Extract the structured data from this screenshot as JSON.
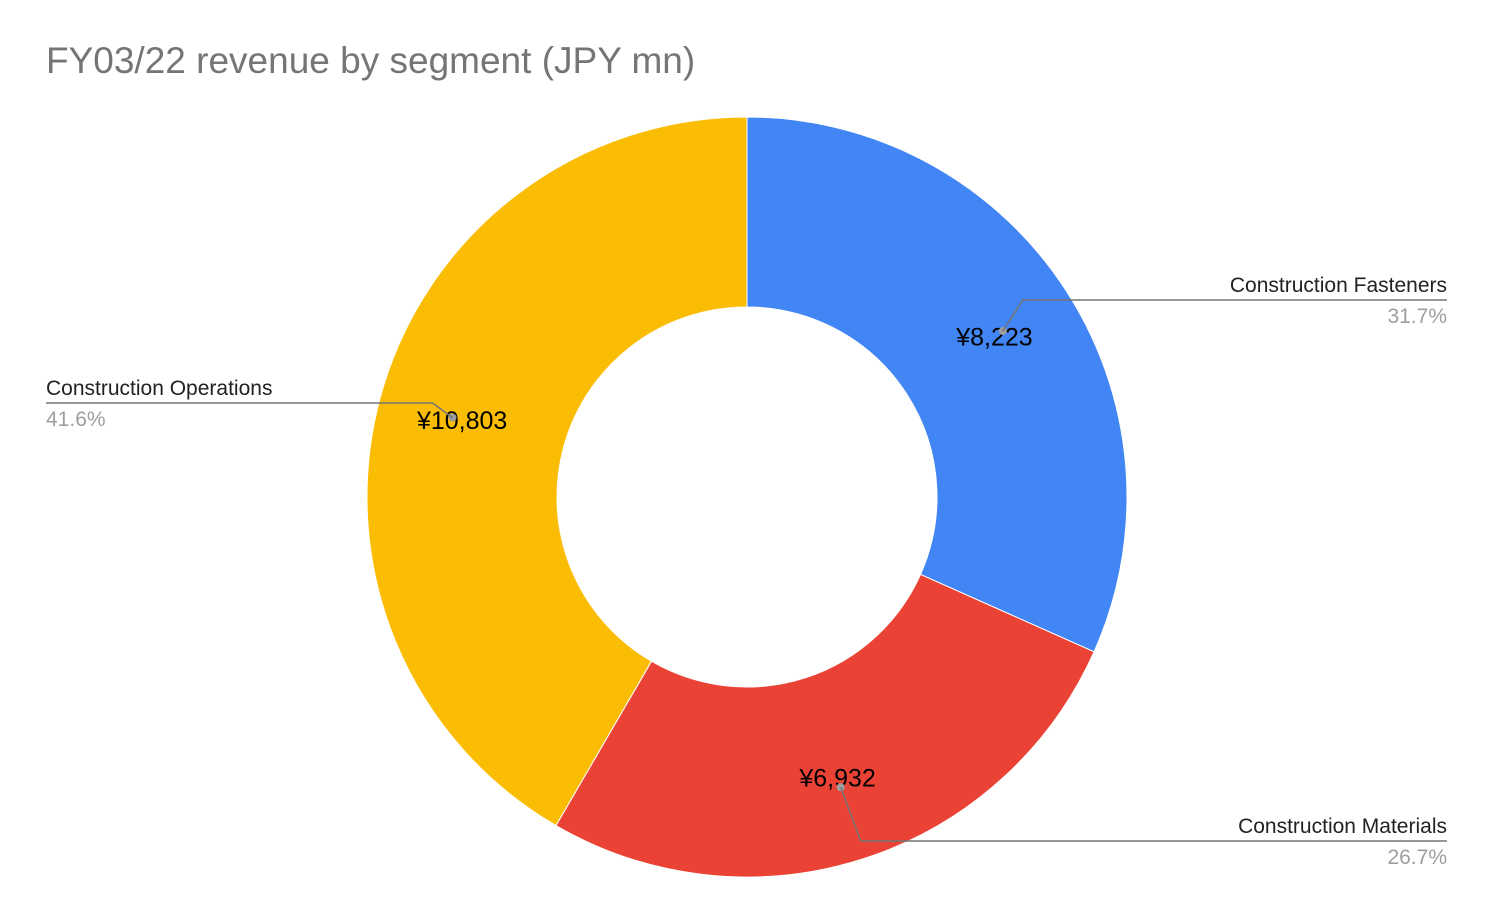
{
  "chart_data": {
    "type": "pie",
    "title": "FY03/22 revenue by segment (JPY mn)",
    "donut": true,
    "categories": [
      "Construction Fasteners",
      "Construction Materials",
      "Construction Operations"
    ],
    "values": [
      8223,
      6932,
      10803
    ],
    "value_labels": [
      "¥8,223",
      "¥6,932",
      "¥10,803"
    ],
    "percent_labels": [
      "31.7%",
      "26.7%",
      "41.6%"
    ],
    "colors": [
      "#4285f4",
      "#ea4335",
      "#fbbc04"
    ],
    "legend": "labeled-callouts"
  }
}
